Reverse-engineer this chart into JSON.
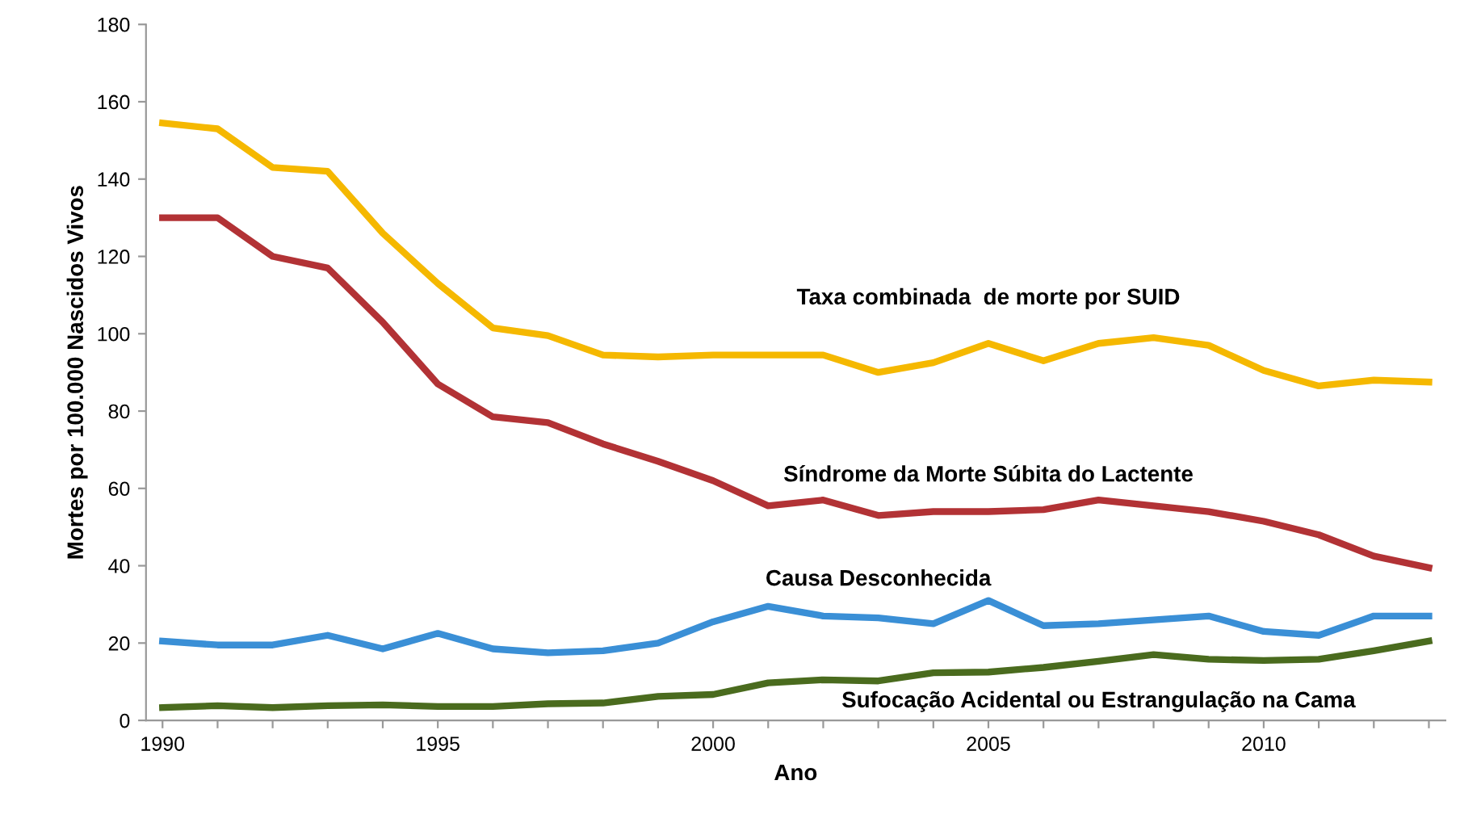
{
  "chart_data": {
    "type": "line",
    "xlabel": "Ano",
    "ylabel": "Mortes por 100.000 Nascidos Vivos",
    "x": [
      1990,
      1991,
      1992,
      1993,
      1994,
      1995,
      1996,
      1997,
      1998,
      1999,
      2000,
      2001,
      2002,
      2003,
      2004,
      2005,
      2006,
      2007,
      2008,
      2009,
      2010,
      2011,
      2012,
      2013
    ],
    "series": [
      {
        "name": "Taxa combinada  de morte por SUID",
        "color": "#f5b800",
        "values": [
          154.5,
          153,
          143,
          142,
          126,
          113,
          101.5,
          99.5,
          94.5,
          94,
          94.5,
          94.5,
          94.5,
          90,
          92.5,
          97.5,
          93,
          97.5,
          99,
          97,
          90.5,
          86.5,
          88,
          87.5
        ]
      },
      {
        "name": "Síndrome da Morte Súbita do Lactente",
        "color": "#b23235",
        "values": [
          130,
          130,
          120,
          117,
          103,
          87,
          78.5,
          77,
          71.5,
          67,
          62,
          55.5,
          57,
          53,
          54,
          54,
          54.5,
          57,
          55.5,
          54,
          51.5,
          48,
          42.5,
          39.5
        ]
      },
      {
        "name": "Causa Desconhecida",
        "color": "#3a8fd6",
        "values": [
          20.5,
          19.5,
          19.5,
          22,
          18.5,
          22.5,
          18.5,
          17.5,
          18,
          20,
          25.5,
          29.5,
          27,
          26.5,
          25,
          31,
          24.5,
          25,
          26,
          27,
          23,
          22,
          27,
          27
        ]
      },
      {
        "name": "Sufocação Acidental ou Estrangulação na Cama",
        "color": "#4a6b1e",
        "values": [
          3.3,
          3.8,
          3.3,
          3.8,
          4,
          3.6,
          3.6,
          4.3,
          4.5,
          6.2,
          6.7,
          9.7,
          10.5,
          10.2,
          12.3,
          12.5,
          13.7,
          15.3,
          17,
          15.8,
          15.5,
          15.8,
          18,
          20.5
        ]
      }
    ],
    "xlim": [
      1989.7,
      2013.3
    ],
    "ylim": [
      0,
      180
    ],
    "xticks": [
      1990,
      {
        "value": 1991,
        "label": null
      },
      {
        "value": 1992,
        "label": null
      },
      {
        "value": 1993,
        "label": null
      },
      {
        "value": 1994,
        "label": null
      },
      1995,
      {
        "value": 1996,
        "label": null
      },
      {
        "value": 1997,
        "label": null
      },
      {
        "value": 1998,
        "label": null
      },
      {
        "value": 1999,
        "label": null
      },
      2000,
      {
        "value": 2001,
        "label": null
      },
      {
        "value": 2002,
        "label": null
      },
      {
        "value": 2003,
        "label": null
      },
      {
        "value": 2004,
        "label": null
      },
      2005,
      {
        "value": 2006,
        "label": null
      },
      {
        "value": 2007,
        "label": null
      },
      {
        "value": 2008,
        "label": null
      },
      {
        "value": 2009,
        "label": null
      },
      2010,
      {
        "value": 2011,
        "label": null
      },
      {
        "value": 2012,
        "label": null
      },
      {
        "value": 2013,
        "label": null
      }
    ],
    "yticks": [
      0,
      20,
      40,
      60,
      80,
      100,
      120,
      140,
      160,
      180
    ],
    "grid": false,
    "legend": false,
    "marker": "none",
    "line_style": "solid"
  }
}
